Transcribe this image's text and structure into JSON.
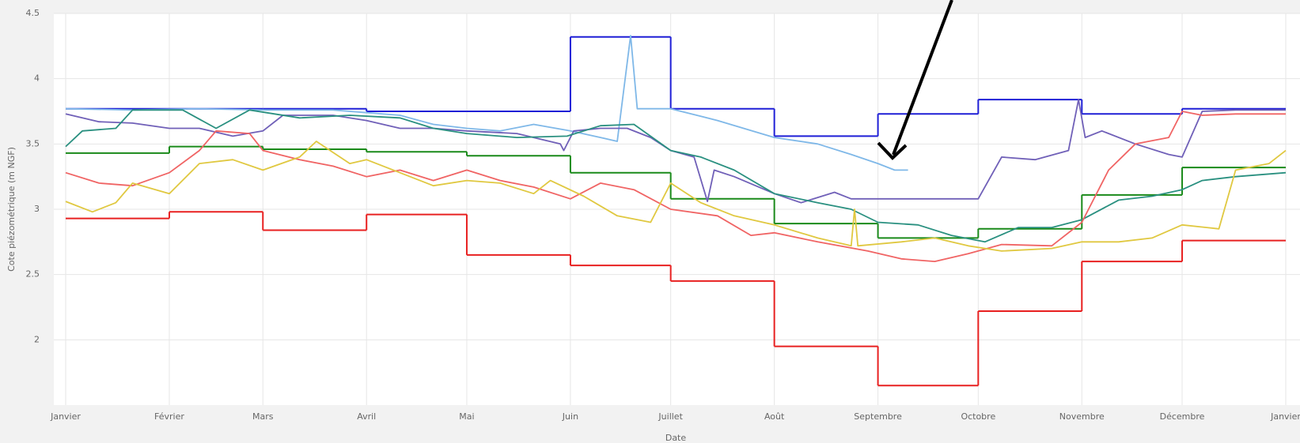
{
  "chart_data": {
    "type": "line",
    "x_label": "Date",
    "y_label": "Cote piézométrique (m NGF)",
    "xlim": [
      0,
      365
    ],
    "ylim": [
      1.5,
      4.5
    ],
    "xticks": [
      {
        "value": 0,
        "label": "Janvier"
      },
      {
        "value": 31,
        "label": "Février"
      },
      {
        "value": 59,
        "label": "Mars"
      },
      {
        "value": 90,
        "label": "Avril"
      },
      {
        "value": 120,
        "label": "Mai"
      },
      {
        "value": 151,
        "label": "Juin"
      },
      {
        "value": 181,
        "label": "Juillet"
      },
      {
        "value": 212,
        "label": "Août"
      },
      {
        "value": 243,
        "label": "Septembre"
      },
      {
        "value": 273,
        "label": "Octobre"
      },
      {
        "value": 304,
        "label": "Novembre"
      },
      {
        "value": 334,
        "label": "Décembre"
      },
      {
        "value": 365,
        "label": "Janvier"
      }
    ],
    "yticks": [
      2,
      2.5,
      3,
      3.5,
      4,
      4.5
    ],
    "grid": true,
    "series": [
      {
        "color": "#1f1fd6",
        "step": true,
        "x": [
          0,
          31,
          59,
          90,
          120,
          151,
          181,
          212,
          243,
          273,
          304,
          334
        ],
        "values": [
          3.77,
          3.77,
          3.77,
          3.75,
          3.75,
          4.32,
          3.77,
          3.56,
          3.73,
          3.84,
          3.73,
          3.77
        ]
      },
      {
        "color": "#e82020",
        "step": true,
        "x": [
          0,
          31,
          59,
          90,
          120,
          151,
          181,
          212,
          243,
          273,
          304,
          334
        ],
        "values": [
          2.93,
          2.98,
          2.84,
          2.96,
          2.65,
          2.57,
          2.45,
          1.95,
          1.65,
          2.22,
          2.6,
          2.76
        ]
      },
      {
        "color": "#1a8a1a",
        "step": true,
        "x": [
          0,
          31,
          59,
          90,
          120,
          151,
          181,
          212,
          243,
          273,
          304,
          334
        ],
        "values": [
          3.43,
          3.48,
          3.46,
          3.44,
          3.41,
          3.28,
          3.08,
          2.89,
          2.78,
          2.85,
          3.11,
          3.32
        ]
      },
      {
        "color": "#7fb8e8",
        "x": [
          0,
          20,
          40,
          60,
          80,
          100,
          110,
          120,
          130,
          140,
          151,
          160,
          165,
          169,
          171,
          181,
          195,
          212,
          225,
          235,
          243,
          248,
          252
        ],
        "values": [
          3.77,
          3.76,
          3.77,
          3.76,
          3.76,
          3.72,
          3.65,
          3.62,
          3.6,
          3.65,
          3.6,
          3.55,
          3.52,
          4.33,
          3.77,
          3.77,
          3.68,
          3.55,
          3.5,
          3.42,
          3.35,
          3.3,
          3.3
        ]
      },
      {
        "color": "#7060b8",
        "x": [
          0,
          10,
          20,
          31,
          40,
          50,
          59,
          65,
          80,
          90,
          100,
          110,
          120,
          135,
          148,
          149,
          152,
          160,
          168,
          175,
          181,
          188,
          192,
          194,
          200,
          212,
          220,
          230,
          235,
          250,
          273,
          280,
          290,
          300,
          303,
          305,
          310,
          320,
          330,
          334,
          340,
          350,
          365
        ],
        "values": [
          3.73,
          3.67,
          3.66,
          3.62,
          3.62,
          3.56,
          3.6,
          3.72,
          3.72,
          3.68,
          3.62,
          3.62,
          3.6,
          3.58,
          3.5,
          3.45,
          3.6,
          3.62,
          3.62,
          3.55,
          3.45,
          3.4,
          3.06,
          3.3,
          3.25,
          3.12,
          3.05,
          3.13,
          3.08,
          3.08,
          3.08,
          3.4,
          3.38,
          3.45,
          3.84,
          3.55,
          3.6,
          3.5,
          3.42,
          3.4,
          3.75,
          3.76,
          3.76
        ]
      },
      {
        "color": "#2a9080",
        "x": [
          0,
          5,
          15,
          20,
          35,
          45,
          55,
          70,
          85,
          100,
          110,
          120,
          135,
          150,
          160,
          170,
          181,
          190,
          200,
          212,
          225,
          235,
          243,
          255,
          265,
          275,
          285,
          295,
          304,
          315,
          325,
          334,
          340,
          350,
          365
        ],
        "values": [
          3.48,
          3.6,
          3.62,
          3.76,
          3.76,
          3.62,
          3.76,
          3.7,
          3.72,
          3.7,
          3.62,
          3.58,
          3.55,
          3.56,
          3.64,
          3.65,
          3.45,
          3.4,
          3.3,
          3.12,
          3.05,
          3.0,
          2.9,
          2.88,
          2.8,
          2.75,
          2.86,
          2.86,
          2.92,
          3.07,
          3.1,
          3.15,
          3.22,
          3.25,
          3.28
        ]
      },
      {
        "color": "#f06464",
        "x": [
          0,
          10,
          20,
          31,
          40,
          45,
          55,
          59,
          70,
          80,
          90,
          100,
          110,
          120,
          130,
          140,
          151,
          160,
          170,
          181,
          195,
          205,
          212,
          225,
          240,
          250,
          260,
          270,
          280,
          295,
          304,
          312,
          320,
          330,
          334,
          340,
          350,
          365
        ],
        "values": [
          3.28,
          3.2,
          3.18,
          3.28,
          3.45,
          3.6,
          3.58,
          3.45,
          3.38,
          3.33,
          3.25,
          3.3,
          3.22,
          3.3,
          3.22,
          3.17,
          3.08,
          3.2,
          3.15,
          3.0,
          2.95,
          2.8,
          2.82,
          2.75,
          2.68,
          2.62,
          2.6,
          2.66,
          2.73,
          2.72,
          2.9,
          3.3,
          3.5,
          3.55,
          3.75,
          3.72,
          3.73,
          3.73
        ]
      },
      {
        "color": "#e0c840",
        "x": [
          0,
          8,
          15,
          20,
          31,
          40,
          50,
          59,
          70,
          75,
          85,
          90,
          100,
          110,
          120,
          130,
          140,
          145,
          155,
          165,
          175,
          181,
          190,
          200,
          212,
          225,
          235,
          236,
          237,
          250,
          260,
          270,
          280,
          295,
          304,
          315,
          325,
          334,
          345,
          350,
          360,
          365
        ],
        "values": [
          3.06,
          2.98,
          3.05,
          3.2,
          3.12,
          3.35,
          3.38,
          3.3,
          3.4,
          3.52,
          3.35,
          3.38,
          3.28,
          3.18,
          3.22,
          3.2,
          3.12,
          3.22,
          3.1,
          2.95,
          2.9,
          3.2,
          3.05,
          2.95,
          2.88,
          2.78,
          2.72,
          3.0,
          2.72,
          2.75,
          2.78,
          2.72,
          2.68,
          2.7,
          2.75,
          2.75,
          2.78,
          2.88,
          2.85,
          3.3,
          3.35,
          3.45
        ]
      }
    ]
  }
}
